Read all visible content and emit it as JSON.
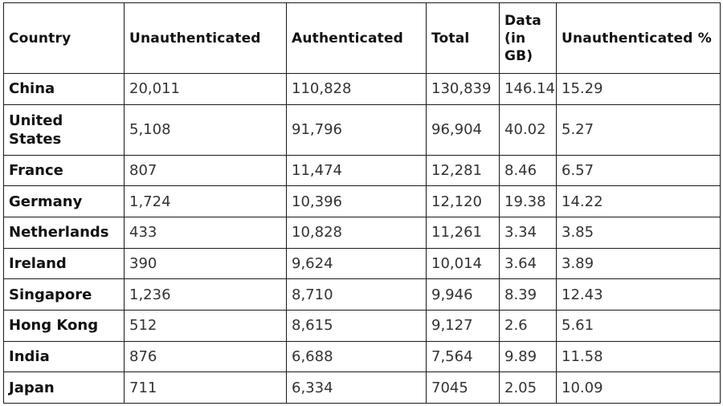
{
  "table": {
    "headers": [
      "Country",
      "Unauthenticated",
      "Authenticated",
      "Total",
      "Data (in GB)",
      "Unauthenticated %"
    ],
    "rows": [
      [
        "China",
        "20,011",
        "110,828",
        "130,839",
        "146.14",
        "15.29"
      ],
      [
        "United States",
        "5,108",
        "91,796",
        "96,904",
        "40.02",
        "5.27"
      ],
      [
        "France",
        "807",
        "11,474",
        "12,281",
        "8.46",
        "6.57"
      ],
      [
        "Germany",
        "1,724",
        "10,396",
        "12,120",
        "19.38",
        "14.22"
      ],
      [
        "Netherlands",
        "433",
        "10,828",
        "11,261",
        "3.34",
        "3.85"
      ],
      [
        "Ireland",
        "390",
        "9,624",
        "10,014",
        "3.64",
        "3.89"
      ],
      [
        "Singapore",
        "1,236",
        "8,710",
        "9,946",
        "8.39",
        "12.43"
      ],
      [
        "Hong Kong",
        "512",
        "8,615",
        "9,127",
        "2.6",
        "5.61"
      ],
      [
        "India",
        "876",
        "6,688",
        "7,564",
        "9.89",
        "11.58"
      ],
      [
        "Japan",
        "711",
        "6,334",
        "7045",
        "2.05",
        "10.09"
      ]
    ]
  }
}
